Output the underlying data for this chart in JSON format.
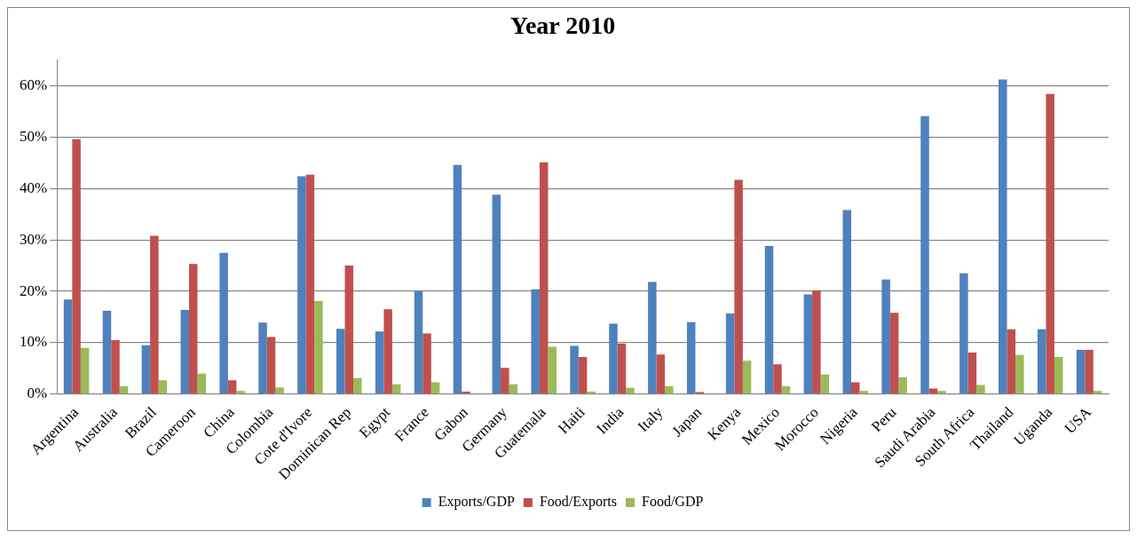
{
  "chart_data": {
    "type": "bar",
    "title": "Year 2010",
    "categories": [
      "Argentina",
      "Australia",
      "Brazil",
      "Cameroon",
      "China",
      "Colombia",
      "Cote d'Ivore",
      "Dominican Rep",
      "Egypt",
      "France",
      "Gabon",
      "Germany",
      "Guatemala",
      "Haiti",
      "India",
      "Italy",
      "Japan",
      "Kenya",
      "Mexico",
      "Morocco",
      "Nigeria",
      "Peru",
      "Saudi Arabia",
      "South Africa",
      "Thailand",
      "Uganda",
      "USA"
    ],
    "series": [
      {
        "name": "Exports/GDP",
        "color": "#4f81bd",
        "values": [
          18.4,
          16.2,
          9.5,
          16.4,
          27.5,
          13.9,
          42.4,
          12.7,
          12.2,
          20.0,
          44.6,
          38.8,
          20.4,
          9.4,
          13.7,
          21.8,
          14.0,
          15.7,
          28.8,
          19.4,
          35.8,
          22.3,
          54.1,
          23.5,
          61.2,
          12.6,
          8.6
        ]
      },
      {
        "name": "Food/Exports",
        "color": "#c0504d",
        "values": [
          49.6,
          10.5,
          30.8,
          25.3,
          2.7,
          11.1,
          42.7,
          25.0,
          16.5,
          11.8,
          0.5,
          5.1,
          45.1,
          7.2,
          9.8,
          7.7,
          0.4,
          41.7,
          5.8,
          20.2,
          2.3,
          15.8,
          1.1,
          8.1,
          12.6,
          58.4,
          8.6
        ]
      },
      {
        "name": "Food/GDP",
        "color": "#9bbb59",
        "values": [
          9.0,
          1.5,
          2.7,
          4.0,
          0.6,
          1.3,
          18.1,
          3.1,
          1.9,
          2.3,
          0,
          1.9,
          9.2,
          0.5,
          1.2,
          1.5,
          0,
          6.5,
          1.5,
          3.8,
          0.6,
          3.3,
          0.6,
          1.8,
          7.6,
          7.2,
          0.6
        ]
      }
    ],
    "ylim": [
      0,
      65
    ],
    "yticks": [
      {
        "value": 0,
        "label": "0%"
      },
      {
        "value": 10,
        "label": "10%"
      },
      {
        "value": 20,
        "label": "20%"
      },
      {
        "value": 30,
        "label": "30%"
      },
      {
        "value": 40,
        "label": "40%"
      },
      {
        "value": 50,
        "label": "50%"
      },
      {
        "value": 60,
        "label": "60%"
      }
    ],
    "grid": "y",
    "legend": "bottom"
  }
}
